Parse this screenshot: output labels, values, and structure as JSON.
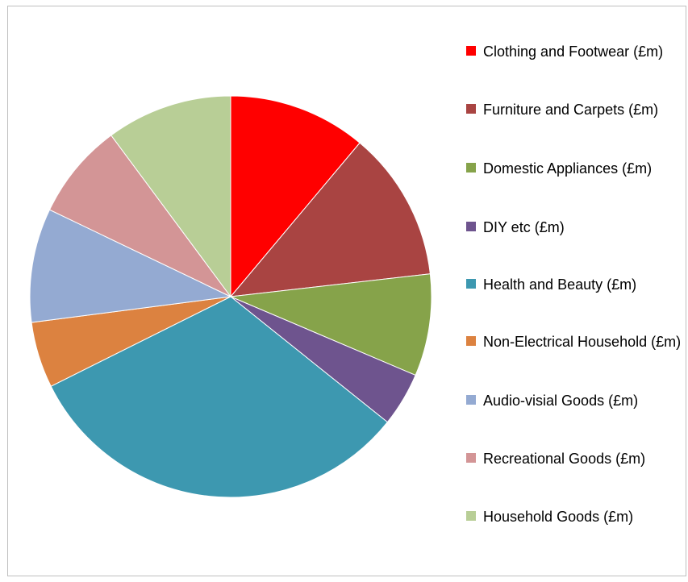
{
  "chart_data": {
    "type": "pie",
    "title": "",
    "series": [
      {
        "values": [
          11.5,
          12.5,
          8.5,
          4.5,
          33.0,
          5.5,
          9.5,
          8.0,
          10.5
        ]
      }
    ],
    "categories": [
      "Clothing and Footwear (£m)",
      "Furniture and Carpets (£m)",
      "Domestic Appliances (£m)",
      "DIY etc (£m)",
      "Health and Beauty (£m)",
      "Non-Electrical Household (£m)",
      "Audio-visial Goods (£m)",
      "Recreational Goods (£m)",
      "Household Goods (£m)"
    ],
    "colors": [
      "#ff0000",
      "#a94442",
      "#86a34a",
      "#6e548e",
      "#3d98b0",
      "#dc8240",
      "#94aad2",
      "#d39596",
      "#b8ce96"
    ],
    "legend_position": "right",
    "start_angle": "12 o'clock",
    "direction": "clockwise",
    "grid": false
  }
}
